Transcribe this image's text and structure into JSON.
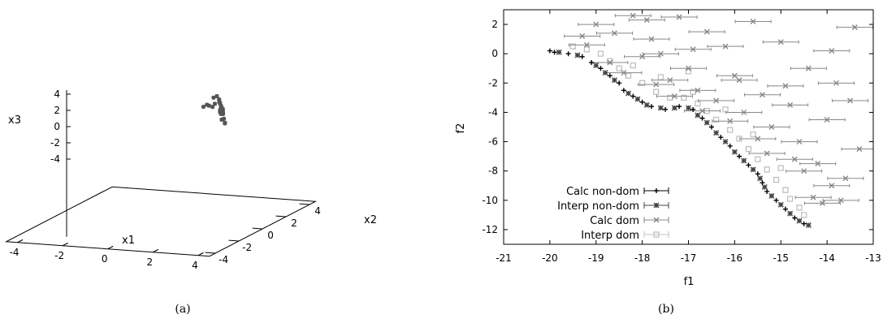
{
  "panel_a": {
    "caption": "(a)",
    "chart_data": {
      "type": "scatter",
      "dimensions": 3,
      "xlabel": "x1",
      "ylabel": "x2",
      "zlabel": "x3",
      "xlim": [
        -4.5,
        4.5
      ],
      "ylim": [
        -4.5,
        4.5
      ],
      "zlim": [
        -4.5,
        4.5
      ],
      "x_ticks": [
        "-4",
        "-2",
        "0",
        "2",
        "4"
      ],
      "y_ticks": [
        "-4",
        "-2",
        "0",
        "2",
        "4"
      ],
      "z_ticks": [
        "4",
        "2",
        "0",
        "-2",
        "-4"
      ],
      "marker_color": "#555555",
      "points": [
        [
          -0.2,
          4.0,
          0.3
        ],
        [
          0.0,
          4.1,
          0.4
        ],
        [
          0.2,
          4.2,
          0.6
        ],
        [
          0.4,
          4.2,
          0.8
        ],
        [
          0.5,
          4.0,
          1.2
        ],
        [
          0.3,
          3.9,
          1.6
        ],
        [
          0.5,
          3.8,
          1.9
        ],
        [
          0.7,
          3.6,
          1.7
        ],
        [
          0.9,
          3.3,
          1.5
        ],
        [
          1.0,
          3.2,
          1.2
        ],
        [
          1.1,
          3.1,
          0.9
        ],
        [
          0.9,
          3.4,
          0.7
        ],
        [
          0.8,
          3.5,
          0.5
        ],
        [
          1.0,
          3.1,
          0.6
        ],
        [
          1.2,
          2.8,
          0.6
        ],
        [
          1.4,
          2.6,
          0.8
        ],
        [
          1.5,
          2.4,
          1.2
        ],
        [
          1.4,
          2.5,
          1.6
        ],
        [
          1.3,
          2.6,
          1.8
        ],
        [
          1.6,
          2.2,
          1.7
        ],
        [
          1.7,
          2.0,
          1.3
        ],
        [
          1.8,
          1.9,
          0.8
        ],
        [
          1.6,
          2.1,
          0.5
        ],
        [
          1.9,
          1.8,
          0.4
        ],
        [
          2.0,
          1.6,
          0.5
        ],
        [
          -0.1,
          4.1,
          0.5
        ],
        [
          0.1,
          4.2,
          0.2
        ],
        [
          1.2,
          2.9,
          1.0
        ]
      ]
    }
  },
  "panel_b": {
    "caption": "(b)",
    "chart_data": {
      "type": "scatter",
      "xlabel": "f1",
      "ylabel": "f2",
      "xlim": [
        -21,
        -13
      ],
      "ylim": [
        -13,
        3
      ],
      "x_ticks": [
        -21,
        -20,
        -19,
        -18,
        -17,
        -16,
        -15,
        -14,
        -13
      ],
      "y_ticks": [
        2,
        0,
        -2,
        -4,
        -6,
        -8,
        -10,
        -12
      ],
      "legend_position": "bottom-left",
      "series": [
        {
          "name": "Calc non-dom",
          "marker": "+",
          "color": "#000000",
          "points": [
            [
              -20.0,
              0.2
            ],
            [
              -19.9,
              0.1
            ],
            [
              -19.6,
              0.0
            ],
            [
              -19.3,
              -0.2
            ],
            [
              -19.1,
              -0.6
            ],
            [
              -18.9,
              -1.0
            ],
            [
              -18.7,
              -1.5
            ],
            [
              -18.5,
              -2.0
            ],
            [
              -18.4,
              -2.5
            ],
            [
              -18.2,
              -2.9
            ],
            [
              -18.0,
              -3.3
            ],
            [
              -17.8,
              -3.6
            ],
            [
              -17.5,
              -3.8
            ],
            [
              -17.2,
              -3.6
            ],
            [
              -16.9,
              -3.8
            ],
            [
              -16.7,
              -4.4
            ],
            [
              -16.5,
              -5.0
            ],
            [
              -16.3,
              -5.7
            ],
            [
              -16.1,
              -6.3
            ],
            [
              -15.9,
              -7.0
            ],
            [
              -15.7,
              -7.6
            ],
            [
              -15.5,
              -8.2
            ],
            [
              -15.4,
              -8.8
            ],
            [
              -15.3,
              -9.4
            ],
            [
              -15.1,
              -10.0
            ],
            [
              -14.9,
              -10.6
            ],
            [
              -14.7,
              -11.2
            ],
            [
              -14.5,
              -11.6
            ]
          ]
        },
        {
          "name": "Interp non-dom",
          "marker": "*",
          "color": "#444444",
          "points": [
            [
              -19.8,
              0.1
            ],
            [
              -19.4,
              -0.1
            ],
            [
              -19.0,
              -0.8
            ],
            [
              -18.8,
              -1.3
            ],
            [
              -18.6,
              -1.8
            ],
            [
              -18.3,
              -2.7
            ],
            [
              -18.1,
              -3.1
            ],
            [
              -17.9,
              -3.5
            ],
            [
              -17.6,
              -3.7
            ],
            [
              -17.3,
              -3.7
            ],
            [
              -17.0,
              -3.7
            ],
            [
              -16.8,
              -4.2
            ],
            [
              -16.6,
              -4.7
            ],
            [
              -16.4,
              -5.4
            ],
            [
              -16.2,
              -6.0
            ],
            [
              -16.0,
              -6.7
            ],
            [
              -15.8,
              -7.3
            ],
            [
              -15.6,
              -7.9
            ],
            [
              -15.45,
              -8.5
            ],
            [
              -15.35,
              -9.1
            ],
            [
              -15.2,
              -9.7
            ],
            [
              -15.0,
              -10.3
            ],
            [
              -14.8,
              -10.9
            ],
            [
              -14.6,
              -11.4
            ],
            [
              -14.4,
              -11.7
            ]
          ]
        },
        {
          "name": "Calc dom",
          "marker": "x",
          "color": "#888888",
          "points": [
            [
              -19.3,
              1.2
            ],
            [
              -19.0,
              2.0
            ],
            [
              -18.6,
              1.4
            ],
            [
              -18.2,
              2.6
            ],
            [
              -18.0,
              -0.2
            ],
            [
              -17.8,
              1.0
            ],
            [
              -17.6,
              0.0
            ],
            [
              -17.4,
              -1.8
            ],
            [
              -17.2,
              2.5
            ],
            [
              -17.0,
              -1.0
            ],
            [
              -16.8,
              -2.5
            ],
            [
              -16.6,
              1.5
            ],
            [
              -16.4,
              -3.2
            ],
            [
              -16.2,
              0.5
            ],
            [
              -16.0,
              -1.5
            ],
            [
              -15.8,
              -4.0
            ],
            [
              -15.6,
              2.2
            ],
            [
              -15.4,
              -2.8
            ],
            [
              -15.2,
              -5.0
            ],
            [
              -15.0,
              0.8
            ],
            [
              -14.8,
              -3.5
            ],
            [
              -14.6,
              -6.0
            ],
            [
              -14.4,
              -1.0
            ],
            [
              -14.2,
              -7.5
            ],
            [
              -14.0,
              -4.5
            ],
            [
              -13.8,
              -2.0
            ],
            [
              -13.6,
              -8.5
            ],
            [
              -13.4,
              1.8
            ],
            [
              -13.3,
              -6.5
            ],
            [
              -14.3,
              -9.8
            ],
            [
              -14.1,
              -10.2
            ],
            [
              -13.7,
              -10.0
            ],
            [
              -13.9,
              -9.0
            ],
            [
              -14.5,
              -8.0
            ],
            [
              -14.7,
              -7.2
            ],
            [
              -15.3,
              -6.8
            ],
            [
              -15.5,
              -5.8
            ],
            [
              -16.1,
              -4.6
            ],
            [
              -16.7,
              -3.9
            ],
            [
              -17.3,
              -2.9
            ],
            [
              -17.7,
              -2.1
            ],
            [
              -18.4,
              -1.3
            ],
            [
              -18.7,
              -0.6
            ],
            [
              -19.2,
              0.6
            ],
            [
              -13.5,
              -3.2
            ],
            [
              -13.9,
              0.2
            ],
            [
              -14.9,
              -2.2
            ],
            [
              -15.9,
              -1.8
            ],
            [
              -16.9,
              0.3
            ],
            [
              -17.9,
              2.3
            ]
          ]
        },
        {
          "name": "Interp dom",
          "marker": "square",
          "color": "#c0c0c0",
          "points": [
            [
              -19.5,
              0.5
            ],
            [
              -19.2,
              0.3
            ],
            [
              -18.9,
              0.0
            ],
            [
              -18.7,
              -0.5
            ],
            [
              -18.5,
              -1.0
            ],
            [
              -18.3,
              -1.5
            ],
            [
              -18.0,
              -2.0
            ],
            [
              -17.7,
              -2.6
            ],
            [
              -17.4,
              -3.0
            ],
            [
              -17.1,
              -3.0
            ],
            [
              -16.8,
              -3.4
            ],
            [
              -16.6,
              -3.9
            ],
            [
              -16.4,
              -4.5
            ],
            [
              -16.1,
              -5.2
            ],
            [
              -15.9,
              -5.8
            ],
            [
              -15.7,
              -6.5
            ],
            [
              -15.5,
              -7.2
            ],
            [
              -15.3,
              -7.9
            ],
            [
              -15.1,
              -8.6
            ],
            [
              -14.9,
              -9.3
            ],
            [
              -14.8,
              -9.9
            ],
            [
              -14.6,
              -10.5
            ],
            [
              -14.5,
              -11.0
            ],
            [
              -17.6,
              -1.6
            ],
            [
              -16.9,
              -2.6
            ],
            [
              -16.2,
              -3.8
            ],
            [
              -15.6,
              -5.5
            ],
            [
              -15.0,
              -7.8
            ],
            [
              -18.2,
              -0.8
            ],
            [
              -17.0,
              -1.2
            ]
          ]
        }
      ]
    }
  }
}
